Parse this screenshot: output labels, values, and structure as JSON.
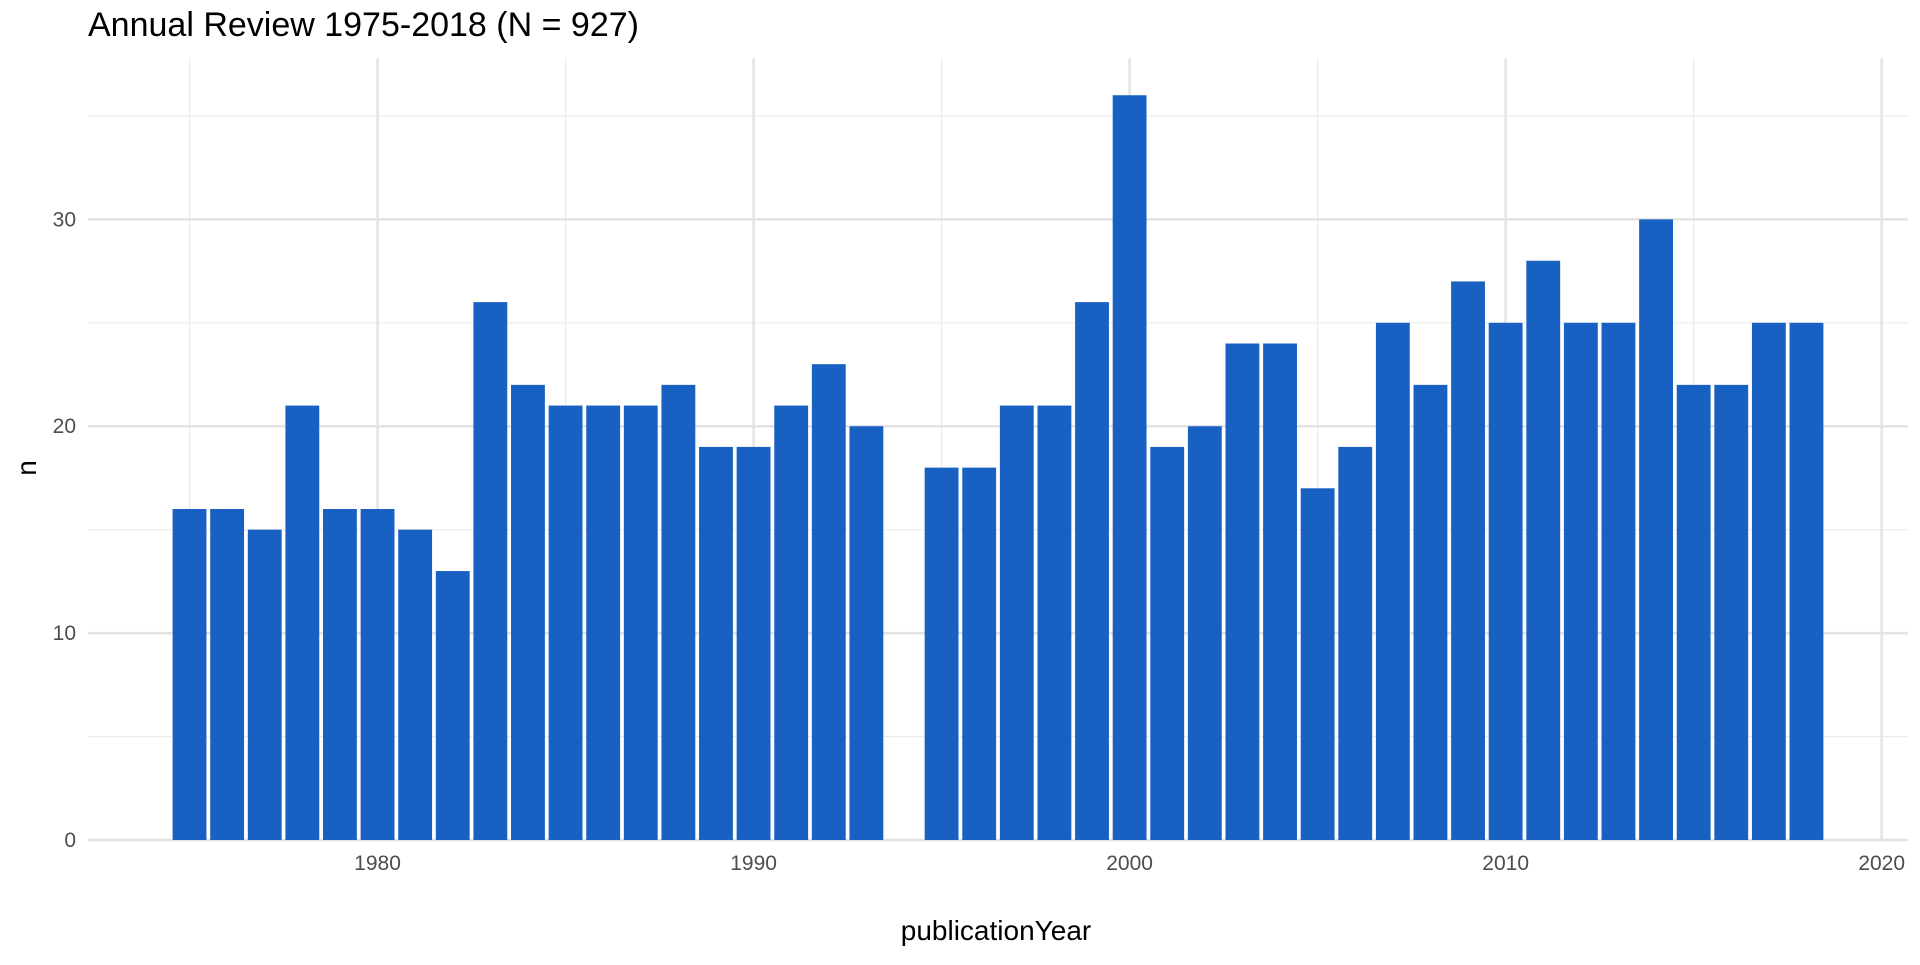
{
  "chart_data": {
    "type": "bar",
    "title": "Annual Review 1975-2018 (N = 927)",
    "xlabel": "publicationYear",
    "ylabel": "n",
    "xlim": [
      1972.3,
      2020.7
    ],
    "ylim": [
      0,
      37.8
    ],
    "x_ticks": [
      1980,
      1990,
      2000,
      2010,
      2020
    ],
    "y_ticks": [
      0,
      10,
      20,
      30
    ],
    "grid": true,
    "bar_color": "#1860C2",
    "x": [
      1975,
      1976,
      1977,
      1978,
      1979,
      1980,
      1981,
      1982,
      1983,
      1984,
      1985,
      1986,
      1987,
      1988,
      1989,
      1990,
      1991,
      1992,
      1993,
      1995,
      1996,
      1997,
      1998,
      1999,
      2000,
      2001,
      2002,
      2003,
      2004,
      2005,
      2006,
      2007,
      2008,
      2009,
      2010,
      2011,
      2012,
      2013,
      2014,
      2015,
      2016,
      2017,
      2018
    ],
    "values": [
      16,
      16,
      15,
      21,
      16,
      16,
      15,
      13,
      26,
      22,
      21,
      21,
      21,
      22,
      19,
      19,
      21,
      23,
      20,
      18,
      18,
      21,
      21,
      26,
      36,
      19,
      20,
      24,
      24,
      17,
      19,
      25,
      22,
      27,
      25,
      28,
      25,
      25,
      30,
      22,
      22,
      25,
      25
    ]
  }
}
